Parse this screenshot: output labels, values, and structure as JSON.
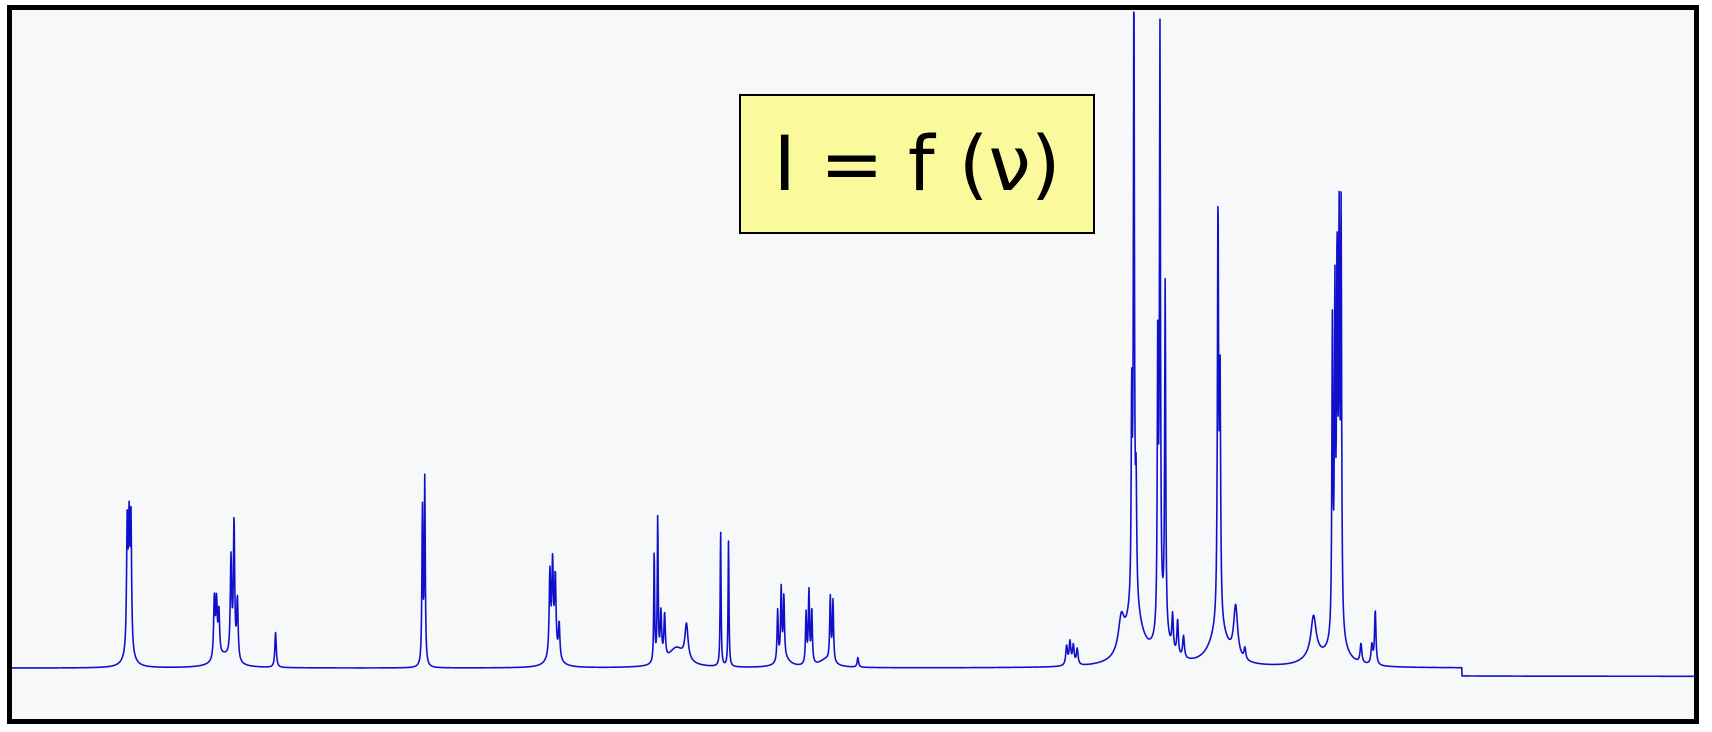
{
  "formula_label": "I = f (ν)",
  "colors": {
    "line": "#1010cc",
    "background": "#f7f8f9",
    "formula_box": "#fafa9c",
    "frame": "#000000"
  },
  "chart_data": {
    "type": "line",
    "title": "",
    "xlabel": "",
    "ylabel": "",
    "axes_visible": false,
    "grid": false,
    "legend": "none",
    "xlim": [
      0,
      1000
    ],
    "ylim": [
      0,
      1000
    ],
    "baseline_segments": [
      {
        "x_start": 0,
        "x_end": 862,
        "y": 14
      },
      {
        "x_start": 862,
        "x_end": 1000,
        "y": 1
      }
    ],
    "peaks": [
      {
        "x": 68.5,
        "y": 200,
        "w": 0.45
      },
      {
        "x": 69.6,
        "y": 185,
        "w": 0.45
      },
      {
        "x": 70.7,
        "y": 210,
        "w": 0.45
      },
      {
        "x": 120.3,
        "y": 95,
        "w": 0.5
      },
      {
        "x": 121.6,
        "y": 85,
        "w": 0.5
      },
      {
        "x": 123.0,
        "y": 70,
        "w": 0.5
      },
      {
        "x": 130.2,
        "y": 155,
        "w": 0.5
      },
      {
        "x": 132.0,
        "y": 215,
        "w": 0.45
      },
      {
        "x": 134.0,
        "y": 95,
        "w": 0.5
      },
      {
        "x": 156.7,
        "y": 55,
        "w": 0.5
      },
      {
        "x": 244.0,
        "y": 245,
        "w": 0.35
      },
      {
        "x": 245.4,
        "y": 290,
        "w": 0.35
      },
      {
        "x": 319.8,
        "y": 130,
        "w": 0.5
      },
      {
        "x": 321.4,
        "y": 140,
        "w": 0.5
      },
      {
        "x": 323.0,
        "y": 120,
        "w": 0.5
      },
      {
        "x": 325.3,
        "y": 55,
        "w": 0.5
      },
      {
        "x": 381.8,
        "y": 178,
        "w": 0.3
      },
      {
        "x": 383.9,
        "y": 230,
        "w": 0.3
      },
      {
        "x": 385.8,
        "y": 75,
        "w": 0.5
      },
      {
        "x": 388.0,
        "y": 70,
        "w": 0.5
      },
      {
        "x": 401.0,
        "y": 55,
        "w": 1.1
      },
      {
        "x": 421.3,
        "y": 215,
        "w": 0.3
      },
      {
        "x": 426.0,
        "y": 200,
        "w": 0.3
      },
      {
        "x": 455.2,
        "y": 80,
        "w": 0.4
      },
      {
        "x": 457.3,
        "y": 110,
        "w": 0.4
      },
      {
        "x": 458.9,
        "y": 95,
        "w": 0.4
      },
      {
        "x": 472.1,
        "y": 80,
        "w": 0.4
      },
      {
        "x": 473.8,
        "y": 115,
        "w": 0.4
      },
      {
        "x": 475.5,
        "y": 85,
        "w": 0.4
      },
      {
        "x": 486.5,
        "y": 100,
        "w": 0.4
      },
      {
        "x": 488.1,
        "y": 95,
        "w": 0.4
      },
      {
        "x": 502.9,
        "y": 15,
        "w": 0.5
      },
      {
        "x": 627.0,
        "y": 30,
        "w": 0.6
      },
      {
        "x": 629.0,
        "y": 36,
        "w": 0.6
      },
      {
        "x": 631.0,
        "y": 30,
        "w": 0.6
      },
      {
        "x": 633.3,
        "y": 25,
        "w": 0.6
      },
      {
        "x": 659.5,
        "y": 50,
        "w": 2.0
      },
      {
        "x": 665.7,
        "y": 310,
        "w": 0.35
      },
      {
        "x": 667.0,
        "y": 990,
        "w": 0.35
      },
      {
        "x": 668.3,
        "y": 170,
        "w": 0.4
      },
      {
        "x": 681.2,
        "y": 440,
        "w": 0.35
      },
      {
        "x": 682.5,
        "y": 920,
        "w": 0.35
      },
      {
        "x": 685.6,
        "y": 540,
        "w": 0.35
      },
      {
        "x": 690.0,
        "y": 55,
        "w": 0.5
      },
      {
        "x": 693.0,
        "y": 55,
        "w": 0.5
      },
      {
        "x": 696.5,
        "y": 35,
        "w": 0.6
      },
      {
        "x": 717.0,
        "y": 650,
        "w": 0.4
      },
      {
        "x": 718.2,
        "y": 380,
        "w": 0.4
      },
      {
        "x": 727.5,
        "y": 80,
        "w": 1.4
      },
      {
        "x": 733.0,
        "y": 18,
        "w": 0.6
      },
      {
        "x": 773.8,
        "y": 60,
        "w": 1.8
      },
      {
        "x": 785.0,
        "y": 480,
        "w": 0.35
      },
      {
        "x": 786.5,
        "y": 510,
        "w": 0.35
      },
      {
        "x": 787.8,
        "y": 560,
        "w": 0.35
      },
      {
        "x": 789.0,
        "y": 600,
        "w": 0.35
      },
      {
        "x": 790.2,
        "y": 640,
        "w": 0.35
      },
      {
        "x": 802.0,
        "y": 30,
        "w": 0.6
      },
      {
        "x": 808.5,
        "y": 30,
        "w": 0.6
      },
      {
        "x": 810.5,
        "y": 85,
        "w": 0.5
      }
    ],
    "broad_bumps": [
      {
        "x": 69.5,
        "y": 18,
        "w": 3.5
      },
      {
        "x": 126.0,
        "y": 18,
        "w": 6.0
      },
      {
        "x": 322.0,
        "y": 18,
        "w": 4.0
      },
      {
        "x": 395.0,
        "y": 30,
        "w": 6.0
      },
      {
        "x": 459.0,
        "y": 14,
        "w": 4.0
      },
      {
        "x": 484.0,
        "y": 12,
        "w": 5.0
      },
      {
        "x": 667.0,
        "y": 90,
        "w": 5.5
      },
      {
        "x": 684.0,
        "y": 55,
        "w": 4.0
      },
      {
        "x": 717.5,
        "y": 60,
        "w": 6.0
      },
      {
        "x": 774.0,
        "y": 15,
        "w": 7.0
      },
      {
        "x": 788.0,
        "y": 45,
        "w": 5.0
      }
    ]
  }
}
